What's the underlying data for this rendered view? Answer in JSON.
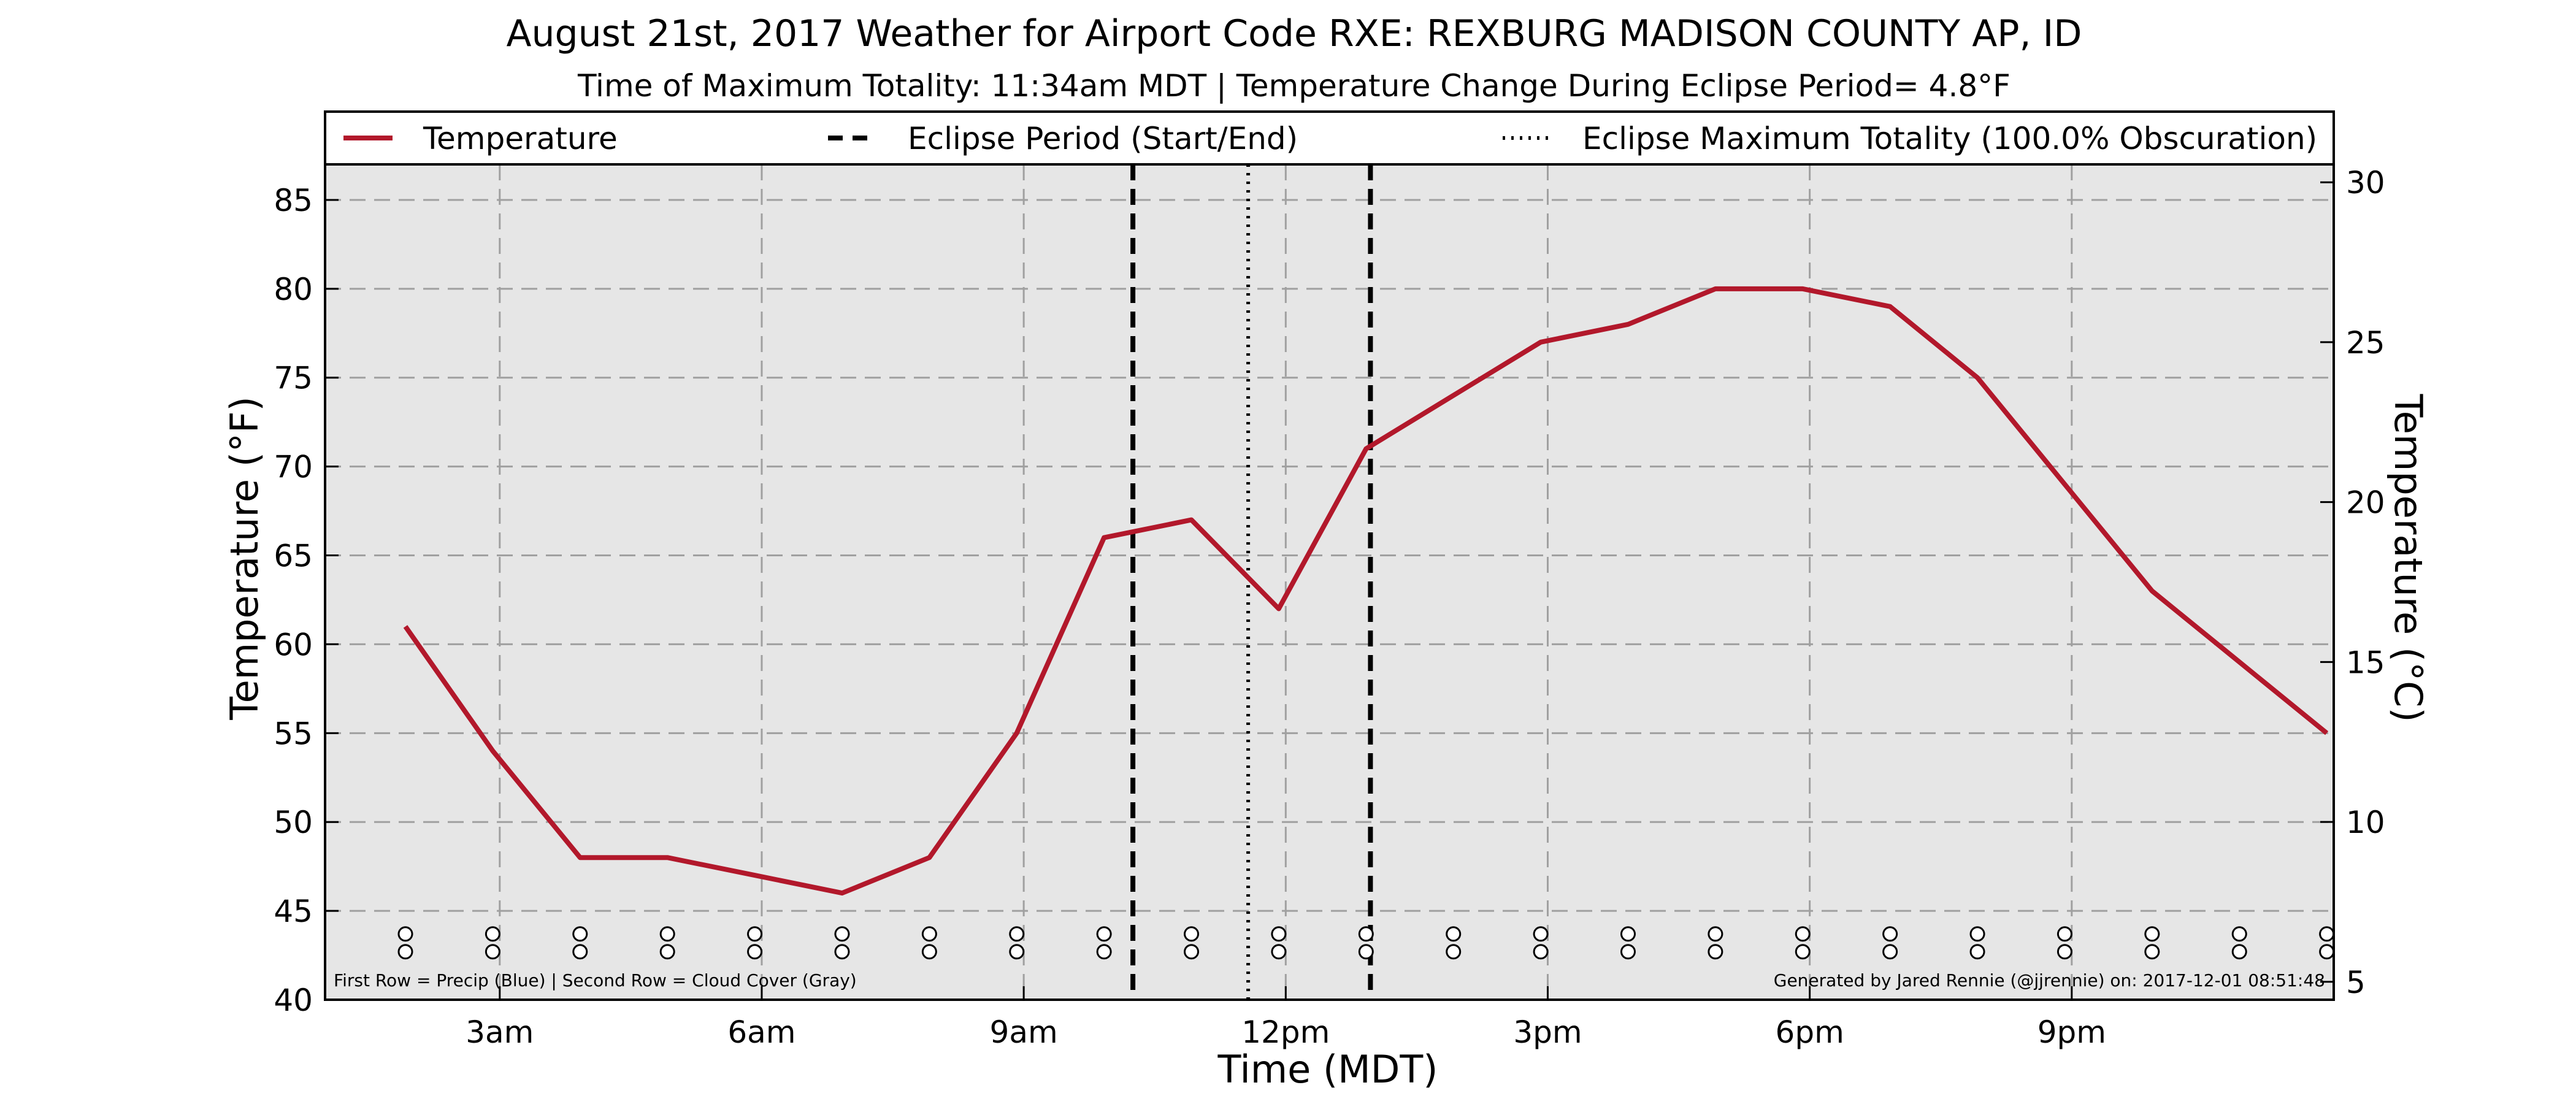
{
  "chart_data": {
    "type": "line",
    "title": "August 21st, 2017 Weather for Airport Code RXE: REXBURG MADISON COUNTY AP, ID",
    "subtitle": "Time of Maximum Totality: 11:34am MDT | Temperature Change During Eclipse Period= 4.8°F",
    "xlabel": "Time (MDT)",
    "ylabel": "Temperature (°F)",
    "ylabel_right": "Temperature (°C)",
    "xlim": [
      1,
      24
    ],
    "ylim": [
      40,
      87
    ],
    "ylim_right_c": [
      4.44,
      30.56
    ],
    "x_ticks": [
      {
        "x": 3,
        "label": "3am"
      },
      {
        "x": 6,
        "label": "6am"
      },
      {
        "x": 9,
        "label": "9am"
      },
      {
        "x": 12,
        "label": "12pm"
      },
      {
        "x": 15,
        "label": "3pm"
      },
      {
        "x": 18,
        "label": "6pm"
      },
      {
        "x": 21,
        "label": "9pm"
      }
    ],
    "y_ticks": [
      40,
      45,
      50,
      55,
      60,
      65,
      70,
      75,
      80,
      85
    ],
    "y_ticks_right": [
      5,
      10,
      15,
      20,
      25,
      30
    ],
    "grid": true,
    "legend_position": "top",
    "series": [
      {
        "name": "Temperature",
        "color": "#b2182b",
        "x": [
          1.92,
          2.92,
          3.92,
          4.92,
          5.92,
          6.92,
          7.92,
          8.92,
          9.92,
          10.92,
          11.92,
          12.92,
          13.92,
          14.92,
          15.92,
          16.92,
          17.92,
          18.92,
          19.92,
          20.92,
          21.92,
          22.92,
          23.92
        ],
        "values": [
          61,
          54,
          48,
          48,
          47,
          46,
          48,
          55,
          66,
          67,
          62,
          71,
          74,
          77,
          78,
          80,
          80,
          79,
          75,
          69,
          63,
          59,
          55
        ]
      }
    ],
    "eclipse_start": 10.25,
    "eclipse_end": 12.97,
    "eclipse_max": 11.57,
    "legend": [
      {
        "label": "Temperature",
        "style": "solid",
        "color": "#b2182b"
      },
      {
        "label": "Eclipse Period (Start/End)",
        "style": "dashed",
        "color": "#000000"
      },
      {
        "label": "Eclipse Maximum Totality (100.0% Obscuration)",
        "style": "dotted",
        "color": "#000000"
      }
    ],
    "marker_rows": {
      "x": [
        1.92,
        2.92,
        3.92,
        4.92,
        5.92,
        6.92,
        7.92,
        8.92,
        9.92,
        10.92,
        11.92,
        12.92,
        13.92,
        14.92,
        15.92,
        16.92,
        17.92,
        18.92,
        19.92,
        20.92,
        21.92,
        22.92,
        23.92
      ],
      "row1_y": 43.7,
      "row2_y": 42.7
    },
    "note_left": "First Row = Precip (Blue) | Second Row = Cloud Cover (Gray)",
    "note_right": "Generated by Jared Rennie (@jjrennie) on: 2017-12-01 08:51:48"
  },
  "colors": {
    "plot_bg": "#e6e6e6",
    "grid": "#a0a0a0",
    "temperature_line": "#b2182b"
  }
}
